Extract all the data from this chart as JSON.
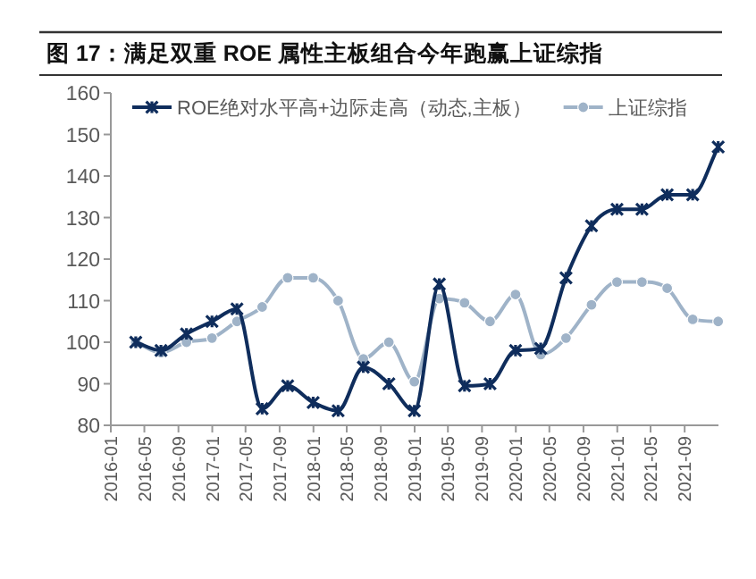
{
  "chart_data": {
    "type": "line",
    "title": "图 17：满足双重 ROE 属性主板组合今年跑赢上证综指",
    "x": [
      "2016-03-31",
      "2016-06-30",
      "2016-09-30",
      "2016-12-31",
      "2017-03-31",
      "2017-06-30",
      "2017-09-30",
      "2017-12-31",
      "2018-03-31",
      "2018-06-30",
      "2018-09-30",
      "2018-12-31",
      "2019-03-31",
      "2019-06-30",
      "2019-09-30",
      "2019-12-31",
      "2020-03-31",
      "2020-06-30",
      "2020-09-30",
      "2020-12-31",
      "2021-03-31",
      "2021-06-30",
      "2021-09-30",
      "2021-12-31"
    ],
    "series": [
      {
        "name": "ROE绝对水平高+边际走高（动态,主板）",
        "color": "#0f2d5c",
        "marker": "cross",
        "values": [
          100,
          98,
          102,
          105,
          108,
          84,
          89.5,
          85.5,
          83.5,
          94,
          90,
          83.5,
          114,
          89.5,
          90,
          98,
          98.5,
          115.5,
          128,
          132,
          132,
          135.5,
          135.5,
          147
        ]
      },
      {
        "name": "上证综指",
        "color": "#9fb3c8",
        "marker": "circle",
        "values": [
          100,
          97.5,
          100,
          101,
          105,
          108.5,
          115.5,
          115.5,
          110,
          96,
          100,
          90.5,
          110.5,
          109.5,
          105,
          111.5,
          97,
          101,
          109,
          114.5,
          114.5,
          113,
          105.5,
          105
        ]
      }
    ],
    "xlim": [
      "2016-01",
      "2022-01"
    ],
    "xticks": [
      "2016-01",
      "2016-05",
      "2016-09",
      "2017-01",
      "2017-05",
      "2017-09",
      "2018-01",
      "2018-05",
      "2018-09",
      "2019-01",
      "2019-05",
      "2019-09",
      "2020-01",
      "2020-05",
      "2020-09",
      "2021-01",
      "2021-05",
      "2021-09"
    ],
    "ylim": [
      80,
      160
    ],
    "yticks": [
      80,
      90,
      100,
      110,
      120,
      130,
      140,
      150,
      160
    ],
    "grid": false,
    "legend": "top",
    "line_style": "solid"
  }
}
